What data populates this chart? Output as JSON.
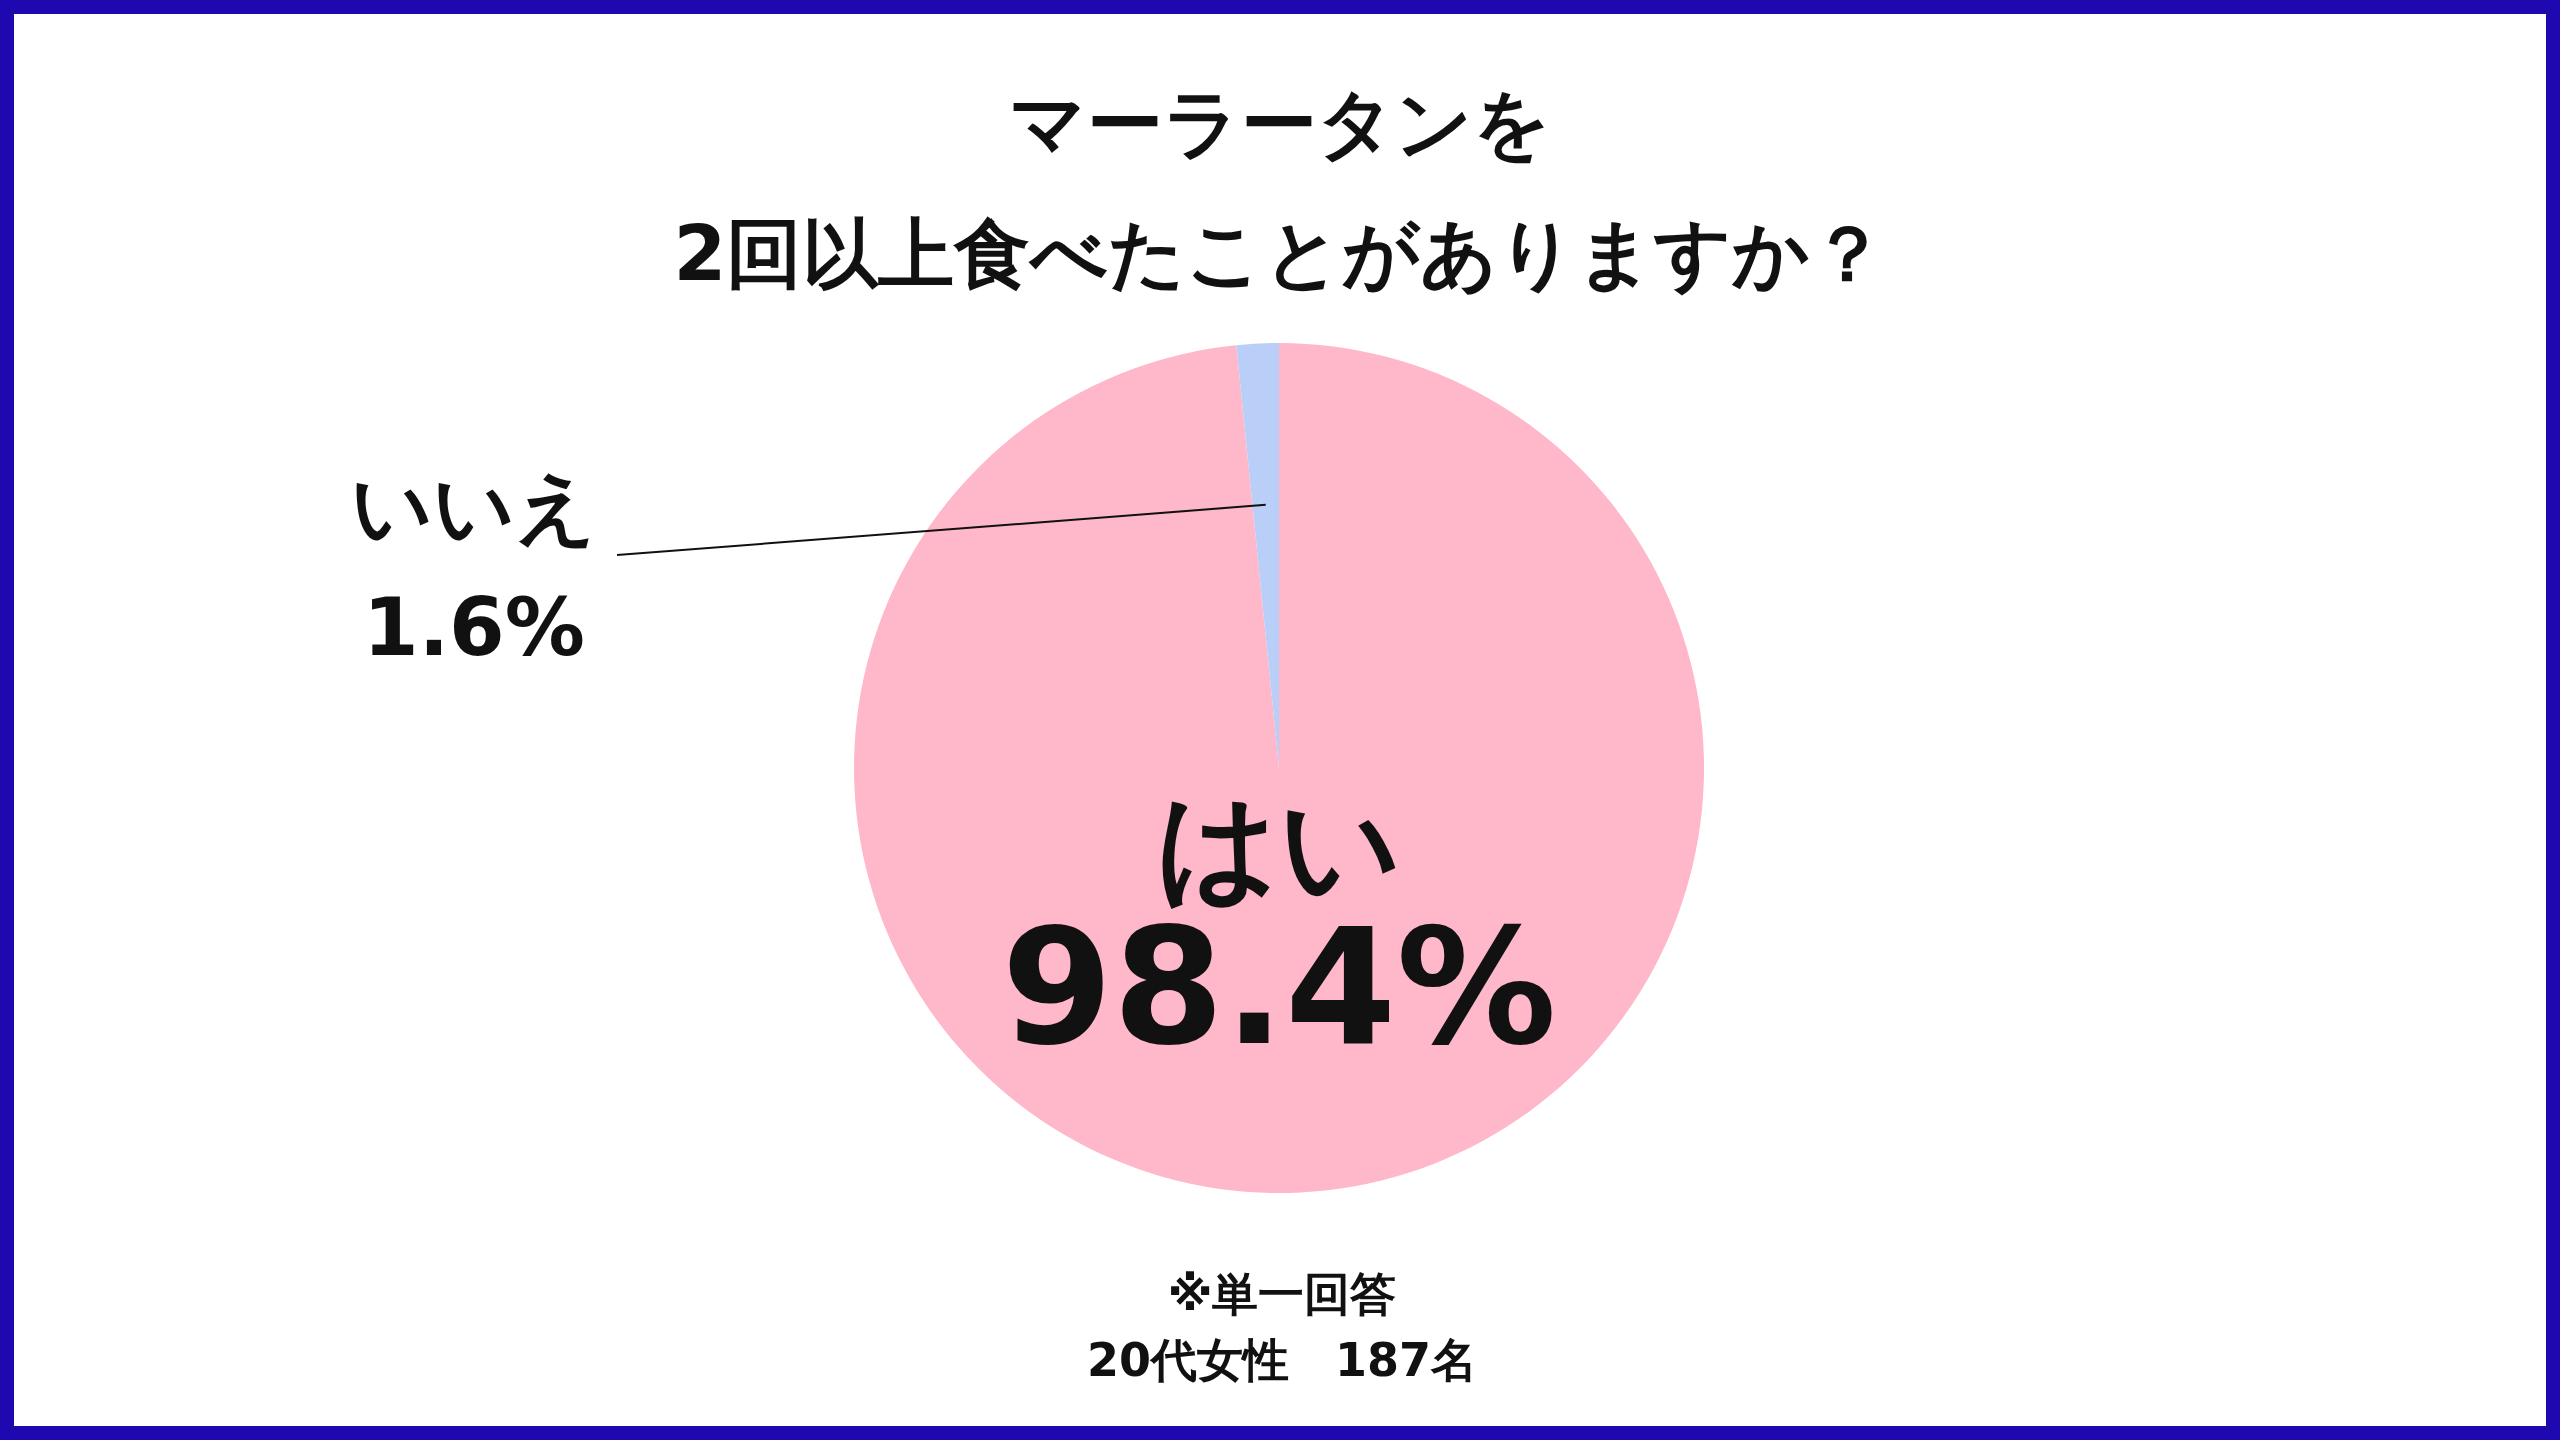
{
  "chart_data": {
    "type": "pie",
    "title": "マーラータンを",
    "subtitle": "2回以上食べたことがありますか？",
    "categories": [
      "はい",
      "いいえ"
    ],
    "values": [
      98.4,
      1.6
    ],
    "colors": [
      "#ffb7ca",
      "#b9cff7"
    ],
    "value_labels": [
      "98.4%",
      "1.6%"
    ],
    "annotations": [
      "※単一回答",
      "20代女性　187名"
    ]
  }
}
